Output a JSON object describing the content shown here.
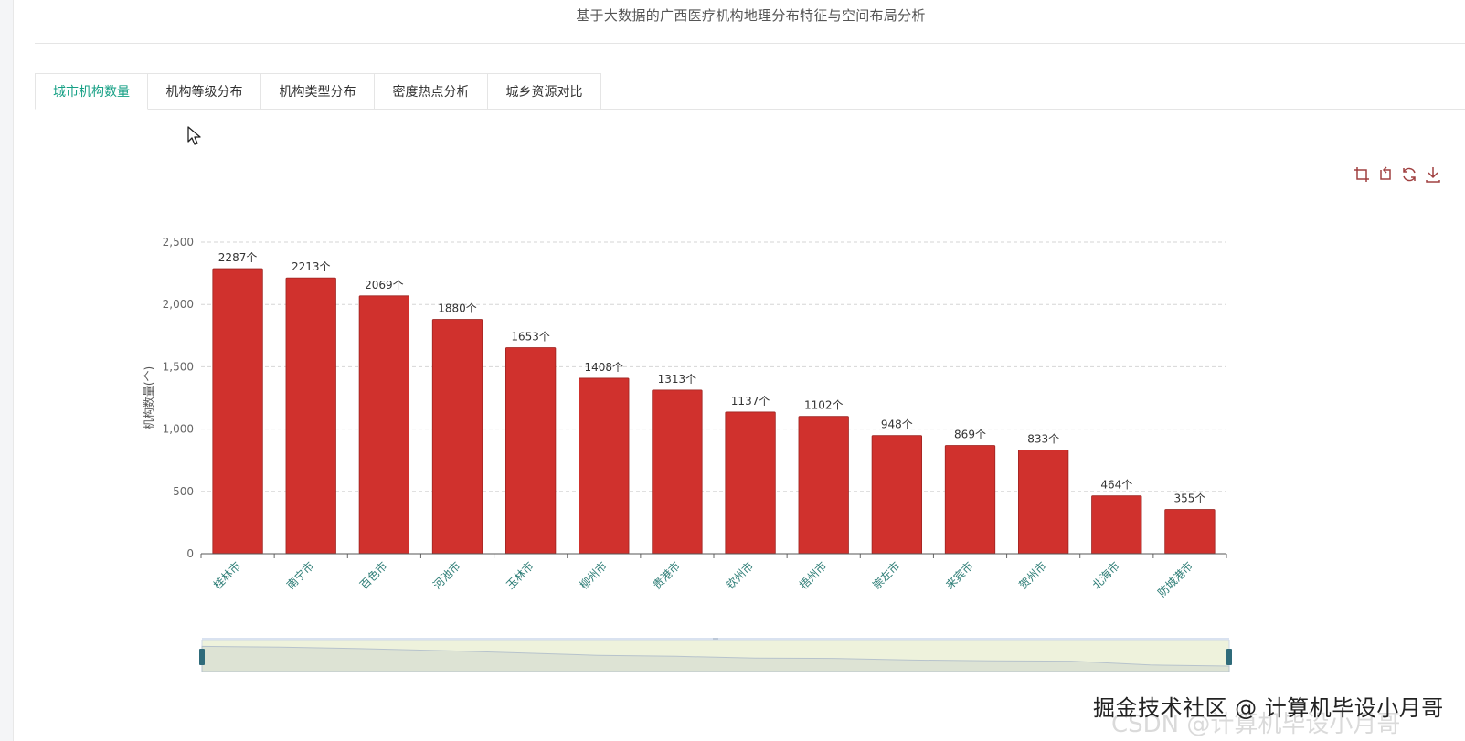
{
  "page": {
    "title": "基于大数据的广西医疗机构地理分布特征与空间布局分析"
  },
  "tabs": [
    {
      "label": "城市机构数量",
      "active": true
    },
    {
      "label": "机构等级分布",
      "active": false
    },
    {
      "label": "机构类型分布",
      "active": false
    },
    {
      "label": "密度热点分析",
      "active": false
    },
    {
      "label": "城乡资源对比",
      "active": false
    }
  ],
  "toolbox": {
    "icons": [
      "zoom-icon",
      "zoom-reset-icon",
      "restore-icon",
      "download-icon"
    ],
    "color": "#a04040"
  },
  "chart_data": {
    "type": "bar",
    "categories": [
      "桂林市",
      "南宁市",
      "百色市",
      "河池市",
      "玉林市",
      "柳州市",
      "贵港市",
      "钦州市",
      "梧州市",
      "崇左市",
      "来宾市",
      "贺州市",
      "北海市",
      "防城港市"
    ],
    "values": [
      2287,
      2213,
      2069,
      1880,
      1653,
      1408,
      1313,
      1137,
      1102,
      948,
      869,
      833,
      464,
      355
    ],
    "label_suffix": "个",
    "title": "",
    "xlabel": "",
    "ylabel": "机构数量(个)",
    "ylim": [
      0,
      2500
    ],
    "yticks": [
      0,
      500,
      1000,
      1500,
      2000,
      2500
    ],
    "ytick_labels": [
      "0",
      "500",
      "1,000",
      "1,500",
      "2,000",
      "2,500"
    ],
    "grid": true,
    "bar_color": "#d0312d",
    "axis_label_color": "#2a7b74",
    "datazoom": {
      "start": 0,
      "end": 100
    }
  },
  "watermark": {
    "text": "掘金技术社区 @ 计算机毕设小月哥",
    "ghost_text": "CSDN @计算机毕设小月哥"
  }
}
